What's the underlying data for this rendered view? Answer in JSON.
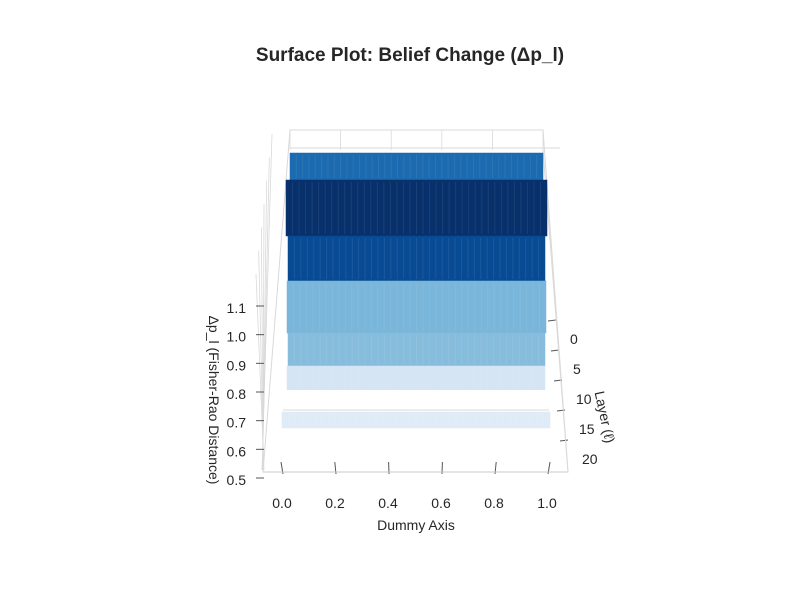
{
  "chart_data": {
    "type": "surface",
    "title": "Surface Plot: Belief Change (Δp_l)",
    "xlabel": "Dummy Axis",
    "ylabel": "Layer (ℓ)",
    "zlabel": "Δp_l (Fisher-Rao Distance)",
    "x_ticks": [
      "0.0",
      "0.2",
      "0.4",
      "0.6",
      "0.8",
      "1.0"
    ],
    "y_ticks": [
      "0",
      "5",
      "10",
      "15",
      "20"
    ],
    "z_ticks": [
      "0.5",
      "0.6",
      "0.7",
      "0.8",
      "0.9",
      "1.0",
      "1.1"
    ],
    "xlim": [
      0,
      1
    ],
    "ylim": [
      0,
      22
    ],
    "zlim": [
      0.5,
      1.15
    ],
    "colormap": "Blues",
    "colors": {
      "axis": "#c8c8c8",
      "grid": "#d9d9d9",
      "text": "#262626"
    },
    "series": [
      {
        "layer": 0,
        "value": 1.13
      },
      {
        "layer": 2,
        "value": 1.12
      },
      {
        "layer": 3,
        "value": 1.1
      },
      {
        "layer": 5,
        "value": 1.06
      },
      {
        "layer": 6,
        "value": 1.02
      },
      {
        "layer": 8,
        "value": 0.98
      },
      {
        "layer": 10,
        "value": 0.94
      },
      {
        "layer": 12,
        "value": 0.87
      },
      {
        "layer": 14,
        "value": 0.81
      },
      {
        "layer": 16,
        "value": 0.74
      },
      {
        "layer": 18,
        "value": 0.66
      },
      {
        "layer": 20,
        "value": 0.6
      }
    ]
  }
}
